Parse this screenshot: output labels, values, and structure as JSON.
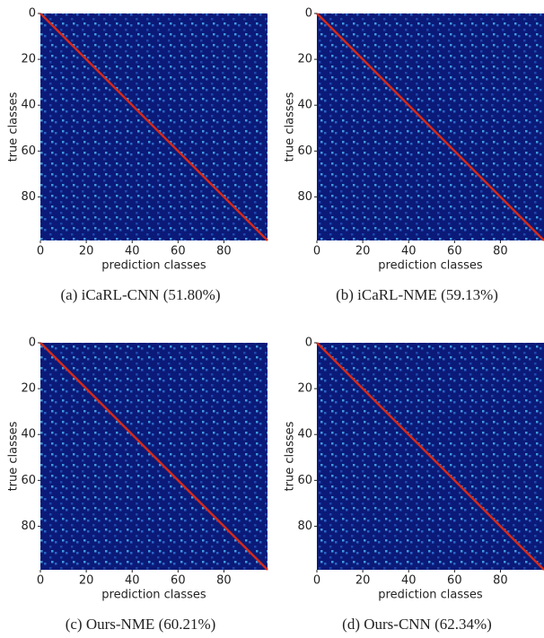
{
  "chart_data": [
    {
      "type": "heatmap",
      "caption": "(a) iCaRL-CNN (51.80%)",
      "xlabel": "prediction classes",
      "ylabel": "true classes",
      "xlim": [
        0,
        99
      ],
      "ylim": [
        0,
        99
      ],
      "xticks": [
        0,
        20,
        40,
        60,
        80
      ],
      "yticks": [
        0,
        20,
        40,
        60,
        80
      ]
    },
    {
      "type": "heatmap",
      "caption": "(b) iCaRL-NME (59.13%)",
      "xlabel": "prediction classes",
      "ylabel": "true classes",
      "xlim": [
        0,
        99
      ],
      "ylim": [
        0,
        99
      ],
      "xticks": [
        0,
        20,
        40,
        60,
        80
      ],
      "yticks": [
        0,
        20,
        40,
        60,
        80
      ]
    },
    {
      "type": "heatmap",
      "caption": "(c) Ours-NME (60.21%)",
      "xlabel": "prediction classes",
      "ylabel": "true classes",
      "xlim": [
        0,
        99
      ],
      "ylim": [
        0,
        99
      ],
      "xticks": [
        0,
        20,
        40,
        60,
        80
      ],
      "yticks": [
        0,
        20,
        40,
        60,
        80
      ]
    },
    {
      "type": "heatmap",
      "caption": "(d) Ours-CNN (62.34%)",
      "xlabel": "prediction classes",
      "ylabel": "true classes",
      "xlim": [
        0,
        99
      ],
      "ylim": [
        0,
        99
      ],
      "xticks": [
        0,
        20,
        40,
        60,
        80
      ],
      "yticks": [
        0,
        20,
        40,
        60,
        80
      ]
    }
  ]
}
